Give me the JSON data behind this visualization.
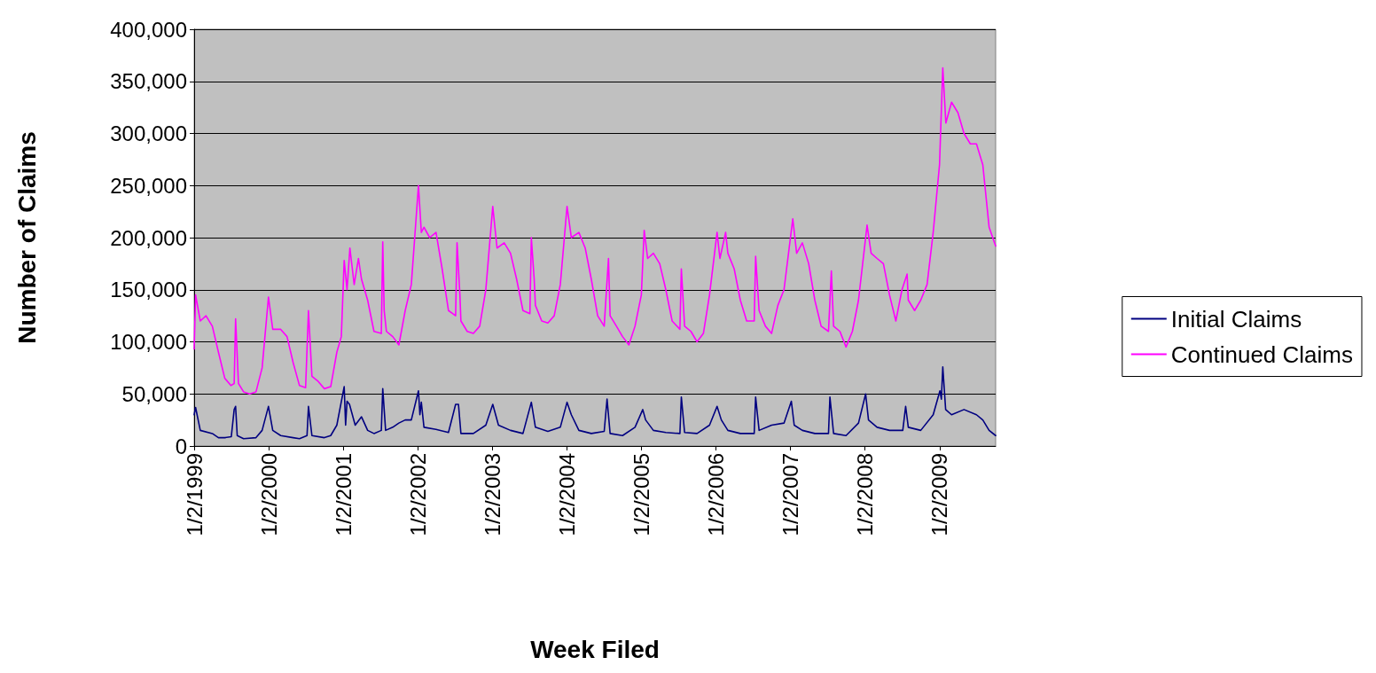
{
  "chart_data": {
    "type": "line",
    "xlabel": "Week Filed",
    "ylabel": "Number of Claims",
    "xlim": [
      "1999-01-02",
      "2009-10-03"
    ],
    "xticks": [
      {
        "value": "1999-01-02",
        "label": "1/2/1999"
      },
      {
        "value": "2000-01-02",
        "label": "1/2/2000"
      },
      {
        "value": "2001-01-02",
        "label": "1/2/2001"
      },
      {
        "value": "2002-01-02",
        "label": "1/2/2002"
      },
      {
        "value": "2003-01-02",
        "label": "1/2/2003"
      },
      {
        "value": "2004-01-02",
        "label": "1/2/2004"
      },
      {
        "value": "2005-01-02",
        "label": "1/2/2005"
      },
      {
        "value": "2006-01-02",
        "label": "1/2/2006"
      },
      {
        "value": "2007-01-02",
        "label": "1/2/2007"
      },
      {
        "value": "2008-01-02",
        "label": "1/2/2008"
      },
      {
        "value": "2009-01-02",
        "label": "1/2/2009"
      }
    ],
    "ylim": [
      0,
      400000
    ],
    "yticks": [
      0,
      {
        "value": 50000,
        "label": "50,000"
      },
      {
        "value": 100000,
        "label": "100,000"
      },
      {
        "value": 150000,
        "label": "150,000"
      },
      {
        "value": 200000,
        "label": "200,000"
      },
      {
        "value": 250000,
        "label": "250,000"
      },
      {
        "value": 300000,
        "label": "300,000"
      },
      {
        "value": 350000,
        "label": "350,000"
      },
      {
        "value": 400000,
        "label": "400,000"
      }
    ],
    "grid": "y",
    "legend": "right",
    "marker": "none",
    "line_style": "solid",
    "series": [
      {
        "name": "Initial Claims",
        "color": "#000080",
        "x": [
          "1999-01-02",
          "1999-01-09",
          "1999-02",
          "1999-04",
          "1999-05",
          "1999-06",
          "1999-07-03",
          "1999-07-17",
          "1999-07-24",
          "1999-08",
          "1999-09",
          "1999-11",
          "1999-12",
          "2000-01-01",
          "2000-01-22",
          "2000-03",
          "2000-05",
          "2000-06",
          "2000-07-08",
          "2000-07-15",
          "2000-08",
          "2000-10",
          "2000-11",
          "2000-12",
          "2001-01-06",
          "2001-01-13",
          "2001-01-20",
          "2001-02",
          "2001-03",
          "2001-04",
          "2001-05",
          "2001-06",
          "2001-07-07",
          "2001-07-14",
          "2001-07-28",
          "2001-09",
          "2001-10",
          "2001-11",
          "2001-12",
          "2002-01-05",
          "2002-01-12",
          "2002-01-19",
          "2002-02",
          "2002-04",
          "2002-06",
          "2002-07-06",
          "2002-07-20",
          "2002-08",
          "2002-10",
          "2002-12",
          "2003-01-04",
          "2003-01-18",
          "2003-02",
          "2003-04",
          "2003-06",
          "2003-07-12",
          "2003-08",
          "2003-10",
          "2003-12",
          "2004-01-03",
          "2004-01-24",
          "2004-03",
          "2004-05",
          "2004-07-03",
          "2004-07-17",
          "2004-08",
          "2004-10",
          "2004-12",
          "2005-01-08",
          "2005-01-22",
          "2005-03",
          "2005-05",
          "2005-07-09",
          "2005-07-16",
          "2005-08",
          "2005-10",
          "2005-12",
          "2006-01-07",
          "2006-01-28",
          "2006-03",
          "2006-05",
          "2006-07-08",
          "2006-07-15",
          "2006-08",
          "2006-10",
          "2006-12",
          "2007-01-06",
          "2007-01-20",
          "2007-03",
          "2007-05",
          "2007-07-07",
          "2007-07-14",
          "2007-08",
          "2007-10",
          "2007-12",
          "2008-01-05",
          "2008-01-19",
          "2008-03",
          "2008-05",
          "2008-07-05",
          "2008-07-19",
          "2008-08",
          "2008-10",
          "2008-12",
          "2009-01-03",
          "2009-01-10",
          "2009-01-17",
          "2009-01-31",
          "2009-03",
          "2009-05",
          "2009-07",
          "2009-08",
          "2009-09",
          "2009-10-03"
        ],
        "values": [
          30000,
          37000,
          15000,
          12000,
          8000,
          8000,
          9000,
          35000,
          38000,
          10000,
          7000,
          8000,
          15000,
          38000,
          15000,
          10000,
          8000,
          7000,
          10000,
          38000,
          10000,
          8000,
          10000,
          20000,
          57000,
          20000,
          43000,
          40000,
          20000,
          28000,
          15000,
          12000,
          15000,
          55000,
          15000,
          18000,
          22000,
          25000,
          25000,
          53000,
          30000,
          42000,
          18000,
          16000,
          13000,
          40000,
          40000,
          12000,
          12000,
          20000,
          40000,
          30000,
          20000,
          15000,
          12000,
          42000,
          18000,
          14000,
          18000,
          42000,
          30000,
          15000,
          12000,
          14000,
          45000,
          12000,
          10000,
          18000,
          35000,
          25000,
          15000,
          13000,
          12000,
          47000,
          13000,
          12000,
          20000,
          38000,
          25000,
          15000,
          12000,
          12000,
          47000,
          15000,
          20000,
          22000,
          43000,
          20000,
          15000,
          12000,
          12000,
          47000,
          12000,
          10000,
          22000,
          50000,
          25000,
          18000,
          15000,
          15000,
          38000,
          18000,
          15000,
          30000,
          53000,
          45000,
          76000,
          35000,
          30000,
          35000,
          30000,
          25000,
          15000,
          10000
        ]
      },
      {
        "name": "Continued Claims",
        "color": "#ff00ff",
        "x": [
          "1999-01-02",
          "1999-01-09",
          "1999-02",
          "1999-03",
          "1999-04",
          "1999-05",
          "1999-06",
          "1999-07",
          "1999-07-17",
          "1999-07-24",
          "1999-08-07",
          "1999-09",
          "1999-10",
          "1999-11",
          "1999-12",
          "2000-01-01",
          "2000-01-22",
          "2000-03",
          "2000-04",
          "2000-05",
          "2000-06",
          "2000-07-01",
          "2000-07-15",
          "2000-08",
          "2000-09",
          "2000-10",
          "2000-11",
          "2000-12",
          "2000-12-23",
          "2001-01-06",
          "2001-01-20",
          "2001-02-03",
          "2001-02-24",
          "2001-03-17",
          "2001-04",
          "2001-05",
          "2001-06",
          "2001-07-07",
          "2001-07-14",
          "2001-07-21",
          "2001-08",
          "2001-09",
          "2001-10",
          "2001-11",
          "2001-12",
          "2002-01-05",
          "2002-01-19",
          "2002-02",
          "2002-03",
          "2002-04",
          "2002-05",
          "2002-06",
          "2002-07-06",
          "2002-07-13",
          "2002-07-27",
          "2002-08",
          "2002-09",
          "2002-10",
          "2002-11",
          "2002-12",
          "2003-01-04",
          "2003-01-25",
          "2003-03",
          "2003-04",
          "2003-05",
          "2003-06",
          "2003-07-05",
          "2003-07-12",
          "2003-07-26",
          "2003-08",
          "2003-09",
          "2003-10",
          "2003-11",
          "2003-12",
          "2004-01-03",
          "2004-01-24",
          "2004-03",
          "2004-04",
          "2004-05",
          "2004-06",
          "2004-07-03",
          "2004-07-24",
          "2004-08",
          "2004-09",
          "2004-10",
          "2004-11",
          "2004-12",
          "2005-01",
          "2005-01-15",
          "2005-02",
          "2005-03",
          "2005-04",
          "2005-05",
          "2005-06",
          "2005-07-09",
          "2005-07-16",
          "2005-08",
          "2005-09",
          "2005-10",
          "2005-11",
          "2005-12",
          "2006-01-07",
          "2006-01-21",
          "2006-02-18",
          "2006-03",
          "2006-04",
          "2006-05",
          "2006-06",
          "2006-07-08",
          "2006-07-15",
          "2006-08",
          "2006-09",
          "2006-10",
          "2006-11",
          "2006-12",
          "2007-01-13",
          "2007-02",
          "2007-03",
          "2007-04",
          "2007-05",
          "2007-06",
          "2007-07-07",
          "2007-07-21",
          "2007-08",
          "2007-09",
          "2007-10",
          "2007-11",
          "2007-12",
          "2008-01-12",
          "2008-02",
          "2008-03",
          "2008-04",
          "2008-05",
          "2008-06",
          "2008-07",
          "2008-07-26",
          "2008-08",
          "2008-09",
          "2008-10",
          "2008-11",
          "2008-12",
          "2009-01",
          "2009-01-17",
          "2009-02",
          "2009-03",
          "2009-04",
          "2009-05",
          "2009-06",
          "2009-07",
          "2009-08",
          "2009-09",
          "2009-10-03"
        ],
        "values": [
          93000,
          145000,
          120000,
          125000,
          115000,
          90000,
          65000,
          58000,
          60000,
          122000,
          60000,
          52000,
          50000,
          52000,
          75000,
          143000,
          112000,
          112000,
          105000,
          80000,
          58000,
          56000,
          130000,
          67000,
          62000,
          55000,
          57000,
          90000,
          105000,
          178000,
          150000,
          190000,
          155000,
          180000,
          160000,
          140000,
          110000,
          108000,
          196000,
          130000,
          110000,
          105000,
          97000,
          130000,
          155000,
          250000,
          205000,
          210000,
          200000,
          205000,
          170000,
          130000,
          125000,
          195000,
          145000,
          120000,
          110000,
          108000,
          115000,
          150000,
          230000,
          190000,
          195000,
          185000,
          160000,
          130000,
          127000,
          200000,
          160000,
          135000,
          120000,
          118000,
          125000,
          155000,
          230000,
          200000,
          205000,
          190000,
          160000,
          125000,
          115000,
          180000,
          125000,
          115000,
          105000,
          97000,
          115000,
          145000,
          207000,
          180000,
          185000,
          175000,
          150000,
          120000,
          112000,
          170000,
          115000,
          110000,
          100000,
          108000,
          145000,
          205000,
          180000,
          205000,
          185000,
          170000,
          140000,
          120000,
          120000,
          182000,
          130000,
          115000,
          108000,
          135000,
          150000,
          218000,
          185000,
          195000,
          175000,
          140000,
          115000,
          110000,
          168000,
          115000,
          110000,
          95000,
          110000,
          140000,
          212000,
          185000,
          180000,
          175000,
          145000,
          120000,
          150000,
          165000,
          140000,
          130000,
          140000,
          155000,
          205000,
          270000,
          363000,
          310000,
          330000,
          320000,
          300000,
          290000,
          290000,
          270000,
          210000,
          192000
        ]
      }
    ]
  }
}
